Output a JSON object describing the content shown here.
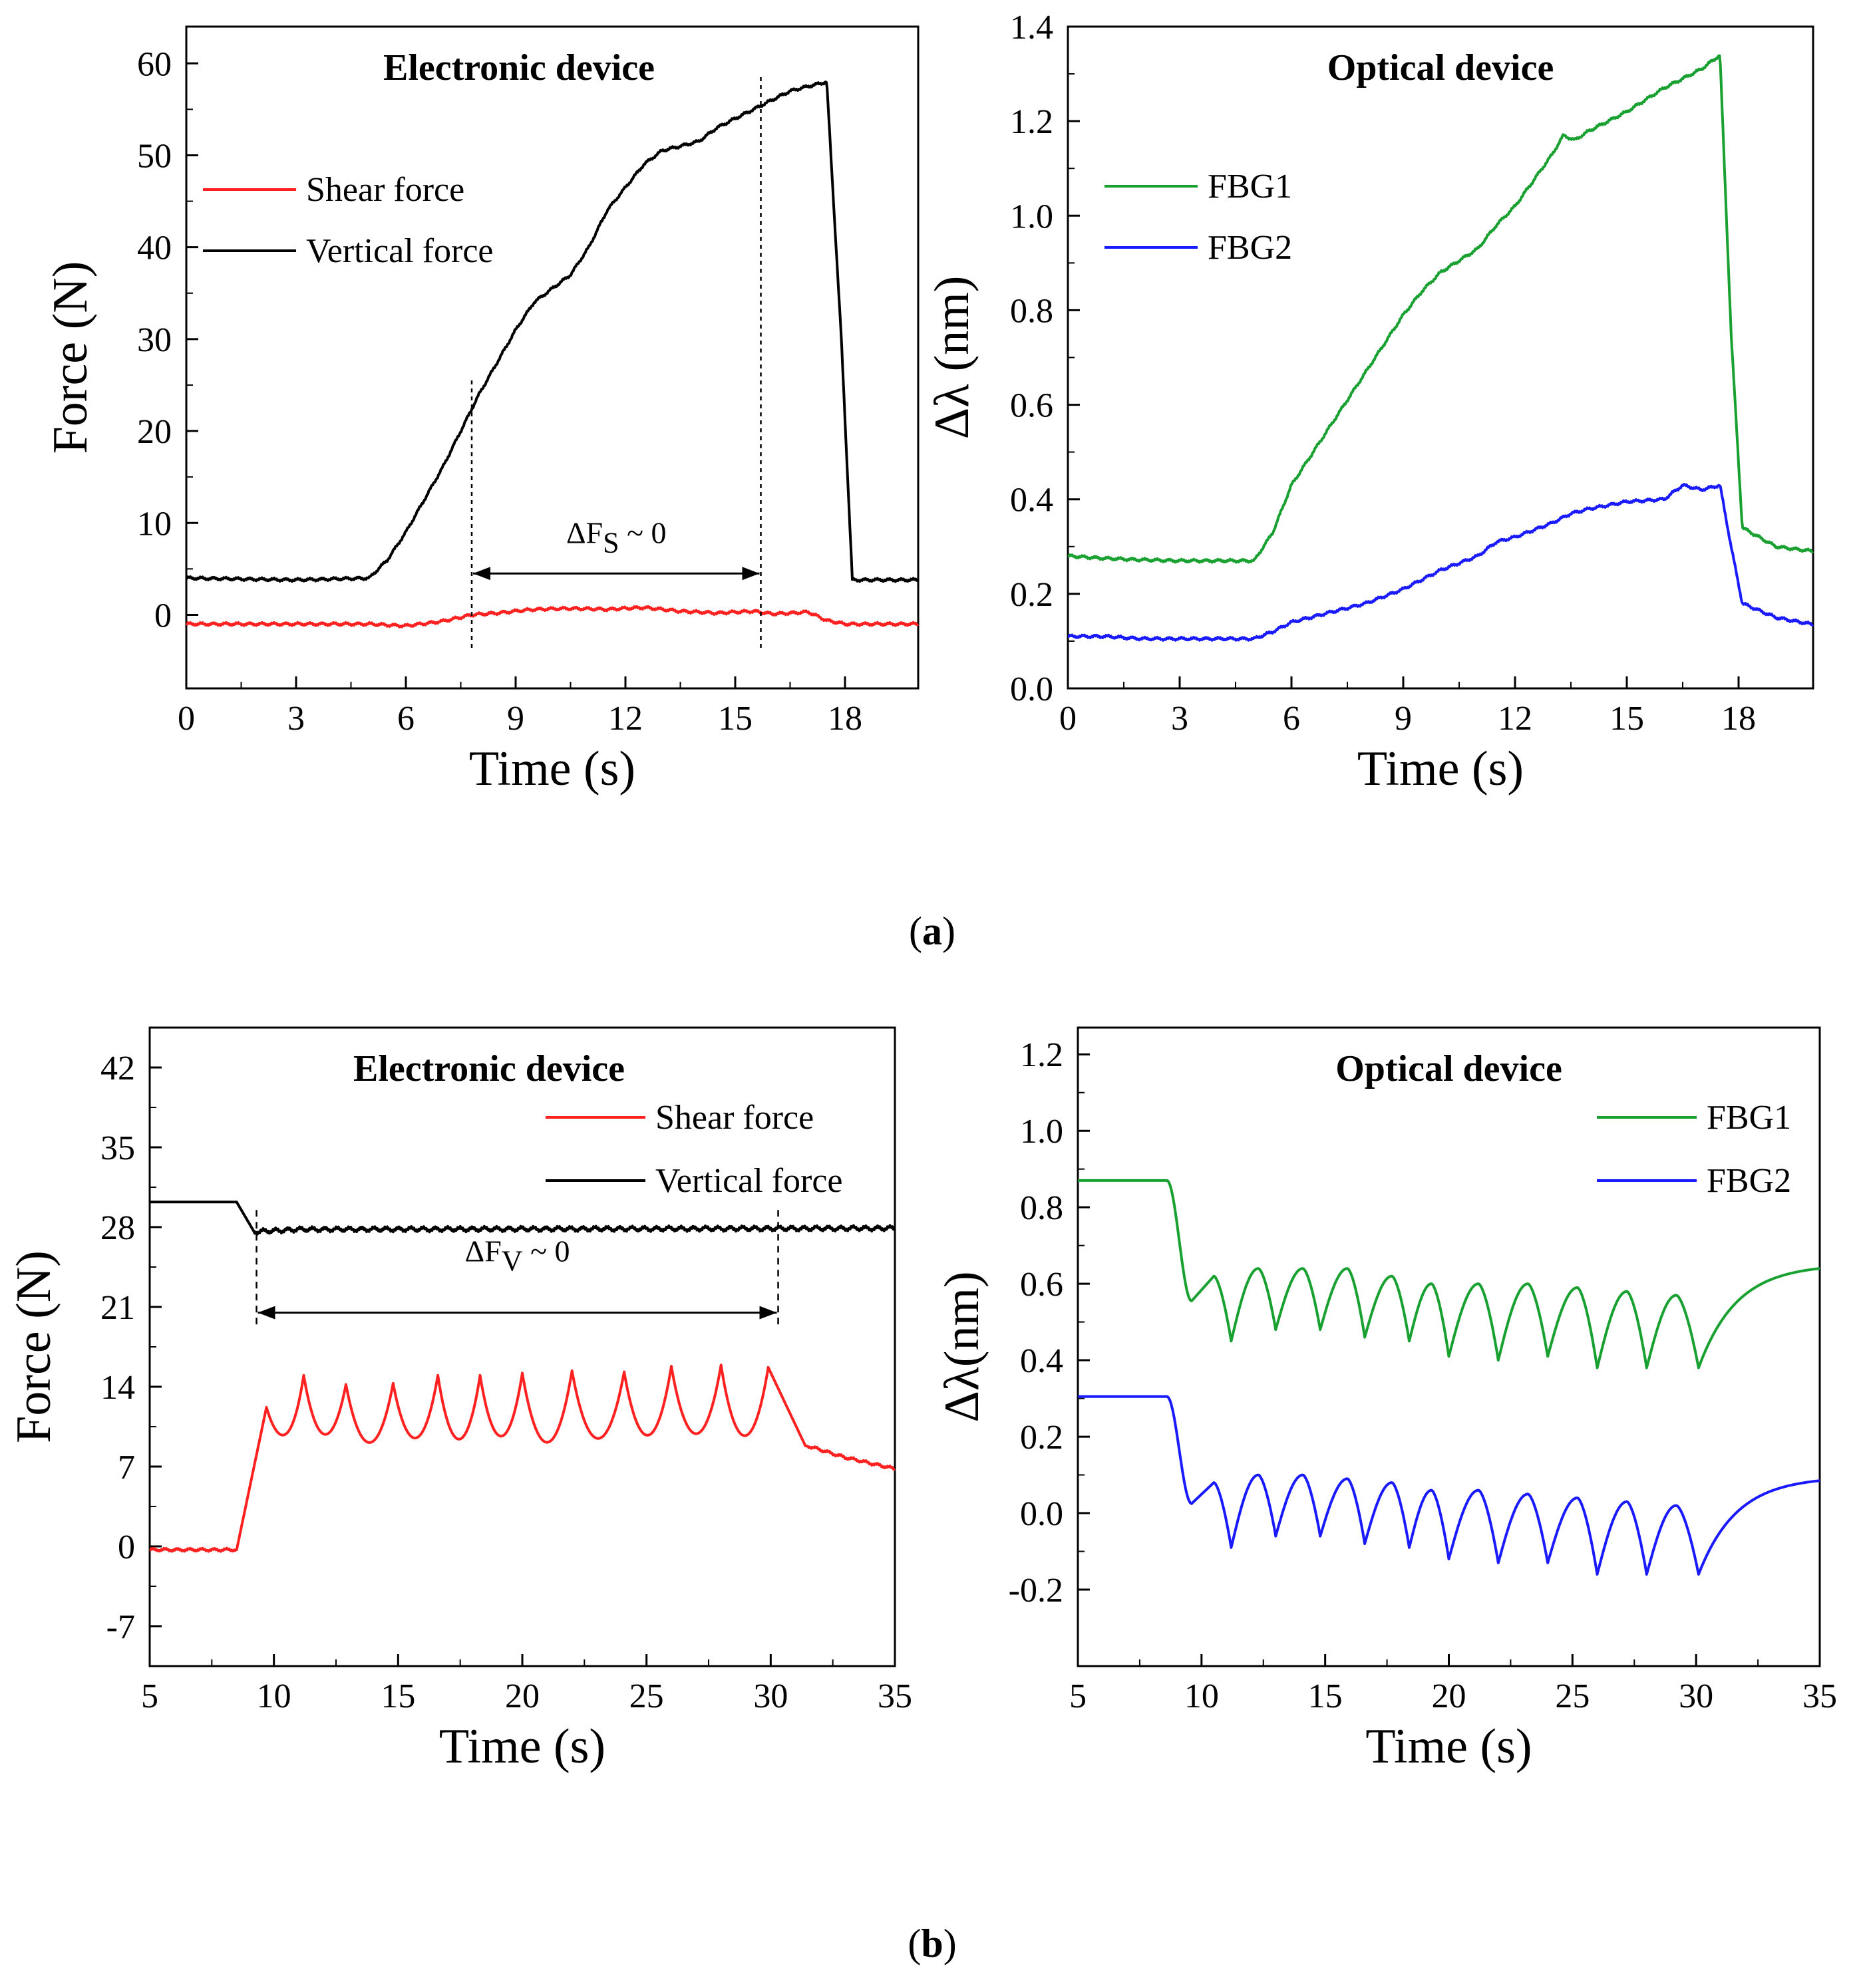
{
  "panel_labels": [
    "a",
    "b"
  ],
  "colors": {
    "shear": "#ff2020",
    "vertical": "#000000",
    "fbg1": "#18a030",
    "fbg2": "#1a1aff"
  },
  "chart_data": [
    {
      "id": "a-electronic",
      "type": "line",
      "title": "Electronic device",
      "xlabel": "Time (s)",
      "ylabel": "Force (N)",
      "xlim": [
        0,
        20
      ],
      "ylim": [
        -8,
        64
      ],
      "xticks": [
        0,
        3,
        6,
        9,
        12,
        15,
        18
      ],
      "yticks": [
        0,
        10,
        20,
        30,
        40,
        50,
        60
      ],
      "grid": false,
      "legend_position": "left",
      "annotation": {
        "text": "ΔF",
        "sub": "S",
        "suffix": " ~ 0",
        "x_from": 7.8,
        "x_to": 15.7
      },
      "series": [
        {
          "name": "Shear force",
          "color": "#ff2020",
          "mode": "a_shear",
          "x": [
            0,
            5,
            6,
            7,
            7.8,
            8.5,
            9.5,
            10.5,
            11.5,
            12.5,
            13.5,
            14.5,
            15.5,
            16,
            16.5,
            17,
            17.5,
            18,
            20
          ],
          "y": [
            -1,
            -1,
            -1.2,
            -0.7,
            0,
            0.2,
            0.6,
            0.7,
            0.6,
            0.8,
            0.4,
            0.2,
            0.4,
            0.1,
            0.2,
            0.3,
            -0.6,
            -1,
            -1
          ]
        },
        {
          "name": "Vertical force",
          "color": "#000000",
          "mode": "a_vertical",
          "x": [
            0,
            3,
            5,
            5.5,
            6,
            6.5,
            7,
            7.5,
            8,
            8.5,
            9,
            9.5,
            10,
            10.5,
            11,
            11.5,
            12,
            12.5,
            13,
            13.5,
            14,
            14.5,
            15,
            15.5,
            16,
            16.5,
            17,
            17.5,
            17.9,
            18.2,
            20
          ],
          "y": [
            4,
            3.8,
            4,
            6,
            9,
            12.5,
            16,
            20,
            24,
            27.5,
            31,
            34,
            35.5,
            37,
            40,
            44,
            46.5,
            49,
            50.5,
            51,
            51.5,
            53,
            54,
            55,
            56,
            57,
            57.5,
            58,
            30,
            3.8,
            3.8
          ]
        }
      ]
    },
    {
      "id": "a-optical",
      "type": "line",
      "title": "Optical device",
      "xlabel": "Time (s)",
      "ylabel": "Δλ (nm)",
      "xlim": [
        0,
        20
      ],
      "ylim": [
        0.0,
        1.4
      ],
      "xticks": [
        0,
        3,
        6,
        9,
        12,
        15,
        18
      ],
      "yticks": [
        0.0,
        0.2,
        0.4,
        0.6,
        0.8,
        1.0,
        1.2,
        1.4
      ],
      "ytick_decimals": 1,
      "grid": false,
      "legend_position": "left",
      "series": [
        {
          "name": "FBG1",
          "color": "#18a030",
          "mode": "a_fbg1",
          "x": [
            0,
            1,
            2,
            3,
            4,
            5,
            5.5,
            6,
            7,
            8,
            9,
            9.5,
            10,
            11,
            11.5,
            12,
            13,
            13.3,
            13.6,
            14,
            15,
            16,
            17,
            17.5,
            17.8,
            18.1,
            19,
            20
          ],
          "y": [
            0.28,
            0.275,
            0.272,
            0.27,
            0.27,
            0.27,
            0.33,
            0.43,
            0.55,
            0.67,
            0.79,
            0.84,
            0.88,
            0.93,
            0.98,
            1.02,
            1.13,
            1.17,
            1.16,
            1.18,
            1.22,
            1.27,
            1.31,
            1.34,
            0.75,
            0.34,
            0.3,
            0.29
          ]
        },
        {
          "name": "FBG2",
          "color": "#1a1aff",
          "mode": "a_fbg2",
          "x": [
            0,
            1,
            2,
            3,
            4,
            5,
            5.5,
            6,
            7,
            8,
            9,
            10,
            11,
            11.5,
            12,
            13,
            13.5,
            14,
            15,
            16,
            16.5,
            17,
            17.5,
            17.8,
            18.1,
            19,
            20
          ],
          "y": [
            0.11,
            0.11,
            0.105,
            0.105,
            0.105,
            0.105,
            0.12,
            0.14,
            0.16,
            0.18,
            0.21,
            0.25,
            0.28,
            0.31,
            0.32,
            0.35,
            0.37,
            0.38,
            0.395,
            0.4,
            0.43,
            0.42,
            0.43,
            0.3,
            0.18,
            0.15,
            0.135
          ]
        }
      ]
    },
    {
      "id": "b-electronic",
      "type": "line",
      "title": "Electronic device",
      "xlabel": "Time (s)",
      "ylabel": "Force (N)",
      "xlim": [
        5,
        35
      ],
      "ylim": [
        -10.5,
        45.5
      ],
      "xticks": [
        5,
        10,
        15,
        20,
        25,
        30,
        35
      ],
      "yticks": [
        -7,
        0,
        7,
        14,
        21,
        28,
        35,
        42
      ],
      "grid": false,
      "legend_position": "top-right",
      "annotation": {
        "text": "ΔF",
        "sub": "V",
        "suffix": " ~ 0",
        "x_from": 9.3,
        "x_to": 30.3
      },
      "series": [
        {
          "name": "Shear force",
          "color": "#ff2020",
          "mode": "b_shear",
          "x": [
            5,
            8.5,
            9.5,
            30.5,
            31.5,
            33,
            35
          ],
          "y": [
            -0.3,
            -0.3,
            12.2,
            12.5,
            8.8,
            7.8,
            6.8
          ],
          "peaks_x": [
            9.7,
            11.2,
            12.9,
            14.8,
            16.6,
            18.3,
            20,
            22,
            24.1,
            26,
            28,
            29.9
          ],
          "peaks_y": [
            12.2,
            15,
            14.2,
            14.3,
            15,
            15,
            15.2,
            15.4,
            15.3,
            15.8,
            15.9,
            15.7
          ],
          "troughs_y": [
            9,
            8.8,
            8,
            8.4,
            8.2,
            8.5,
            7.8,
            8.2,
            8.5,
            8.6,
            8.4,
            8.8
          ]
        },
        {
          "name": "Vertical force",
          "color": "#000000",
          "mode": "b_vertical",
          "x": [
            5,
            8.5,
            9.2,
            11,
            35
          ],
          "y": [
            30.2,
            30.2,
            27.6,
            27.8,
            27.9
          ]
        }
      ]
    },
    {
      "id": "b-optical",
      "type": "line",
      "title": "Optical device",
      "xlabel": "Time (s)",
      "ylabel": "Δλ(nm)",
      "xlim": [
        5,
        35
      ],
      "ylim": [
        -0.4,
        1.27
      ],
      "xticks": [
        5,
        10,
        15,
        20,
        25,
        30,
        35
      ],
      "yticks": [
        -0.2,
        0.0,
        0.2,
        0.4,
        0.6,
        0.8,
        1.0,
        1.2
      ],
      "ytick_decimals": 1,
      "grid": false,
      "legend_position": "top-right",
      "series": [
        {
          "name": "FBG1",
          "color": "#18a030",
          "mode": "b_fbg",
          "x": [
            5,
            8.6,
            9.6,
            30.2,
            32,
            35
          ],
          "y": [
            0.87,
            0.87,
            0.555,
            0.39,
            0.57,
            0.64
          ],
          "peaks_x": [
            10.5,
            12.3,
            14.1,
            15.9,
            17.7,
            19.3,
            21.2,
            23.2,
            25.2,
            27.2,
            29.2
          ],
          "peaks_y": [
            0.62,
            0.64,
            0.64,
            0.64,
            0.62,
            0.6,
            0.6,
            0.6,
            0.59,
            0.58,
            0.57
          ],
          "troughs_x": [
            11.2,
            13,
            14.8,
            16.6,
            18.4,
            20,
            22,
            24,
            26,
            28,
            30.1
          ],
          "troughs_y": [
            0.45,
            0.48,
            0.48,
            0.46,
            0.45,
            0.41,
            0.4,
            0.41,
            0.38,
            0.38,
            0.38
          ]
        },
        {
          "name": "FBG2",
          "color": "#1a1aff",
          "mode": "b_fbg",
          "x": [
            5,
            8.6,
            9.6,
            30.2,
            32,
            35
          ],
          "y": [
            0.305,
            0.305,
            0.025,
            -0.16,
            0.03,
            0.085
          ],
          "peaks_x": [
            10.5,
            12.3,
            14.1,
            15.9,
            17.7,
            19.3,
            21.2,
            23.2,
            25.2,
            27.2,
            29.2
          ],
          "peaks_y": [
            0.08,
            0.1,
            0.1,
            0.09,
            0.08,
            0.06,
            0.06,
            0.05,
            0.04,
            0.03,
            0.02
          ],
          "troughs_x": [
            11.2,
            13,
            14.8,
            16.6,
            18.4,
            20,
            22,
            24,
            26,
            28,
            30.1
          ],
          "troughs_y": [
            -0.09,
            -0.06,
            -0.06,
            -0.08,
            -0.09,
            -0.12,
            -0.13,
            -0.13,
            -0.16,
            -0.16,
            -0.16
          ]
        }
      ]
    }
  ]
}
